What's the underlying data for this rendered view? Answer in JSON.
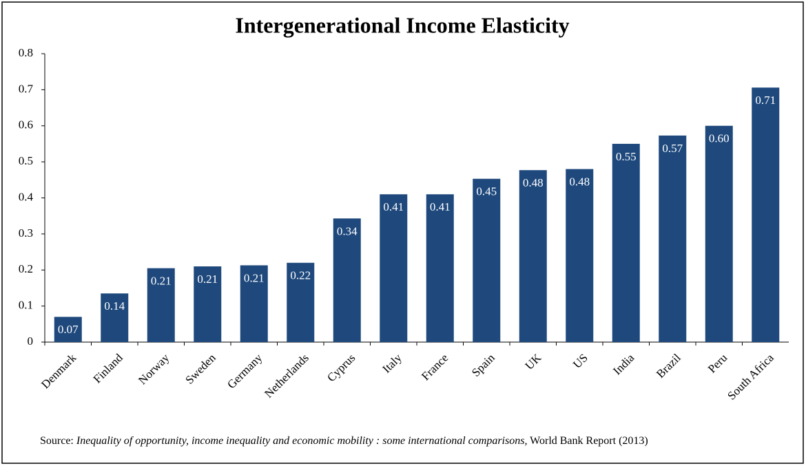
{
  "chart_data": {
    "type": "bar",
    "title": "Intergenerational Income Elasticity",
    "categories": [
      "Denmark",
      "Finland",
      "Norway",
      "Sweden",
      "Germany",
      "Netherlands",
      "Cyprus",
      "Italy",
      "France",
      "Spain",
      "UK",
      "US",
      "India",
      "Brazil",
      "Peru",
      "South Africa"
    ],
    "values": [
      0.07,
      0.135,
      0.205,
      0.21,
      0.213,
      0.22,
      0.343,
      0.41,
      0.41,
      0.453,
      0.477,
      0.48,
      0.55,
      0.573,
      0.6,
      0.706
    ],
    "value_labels": [
      "0.07",
      "0.14",
      "0.21",
      "0.21",
      "0.21",
      "0.22",
      "0.34",
      "0.41",
      "0.41",
      "0.45",
      "0.48",
      "0.48",
      "0.55",
      "0.57",
      "0.60",
      "0.71"
    ],
    "color": "#1f497d",
    "ylim": [
      0,
      0.8
    ],
    "yticks": [
      0,
      0.1,
      0.2,
      0.3,
      0.4,
      0.5,
      0.6,
      0.7,
      0.8
    ],
    "grid": false,
    "source": {
      "prefix": "Source: ",
      "title": "Inequality of opportunity, income inequality and economic mobility : some international comparisons",
      "suffix": ", World Bank Report (2013)"
    }
  }
}
